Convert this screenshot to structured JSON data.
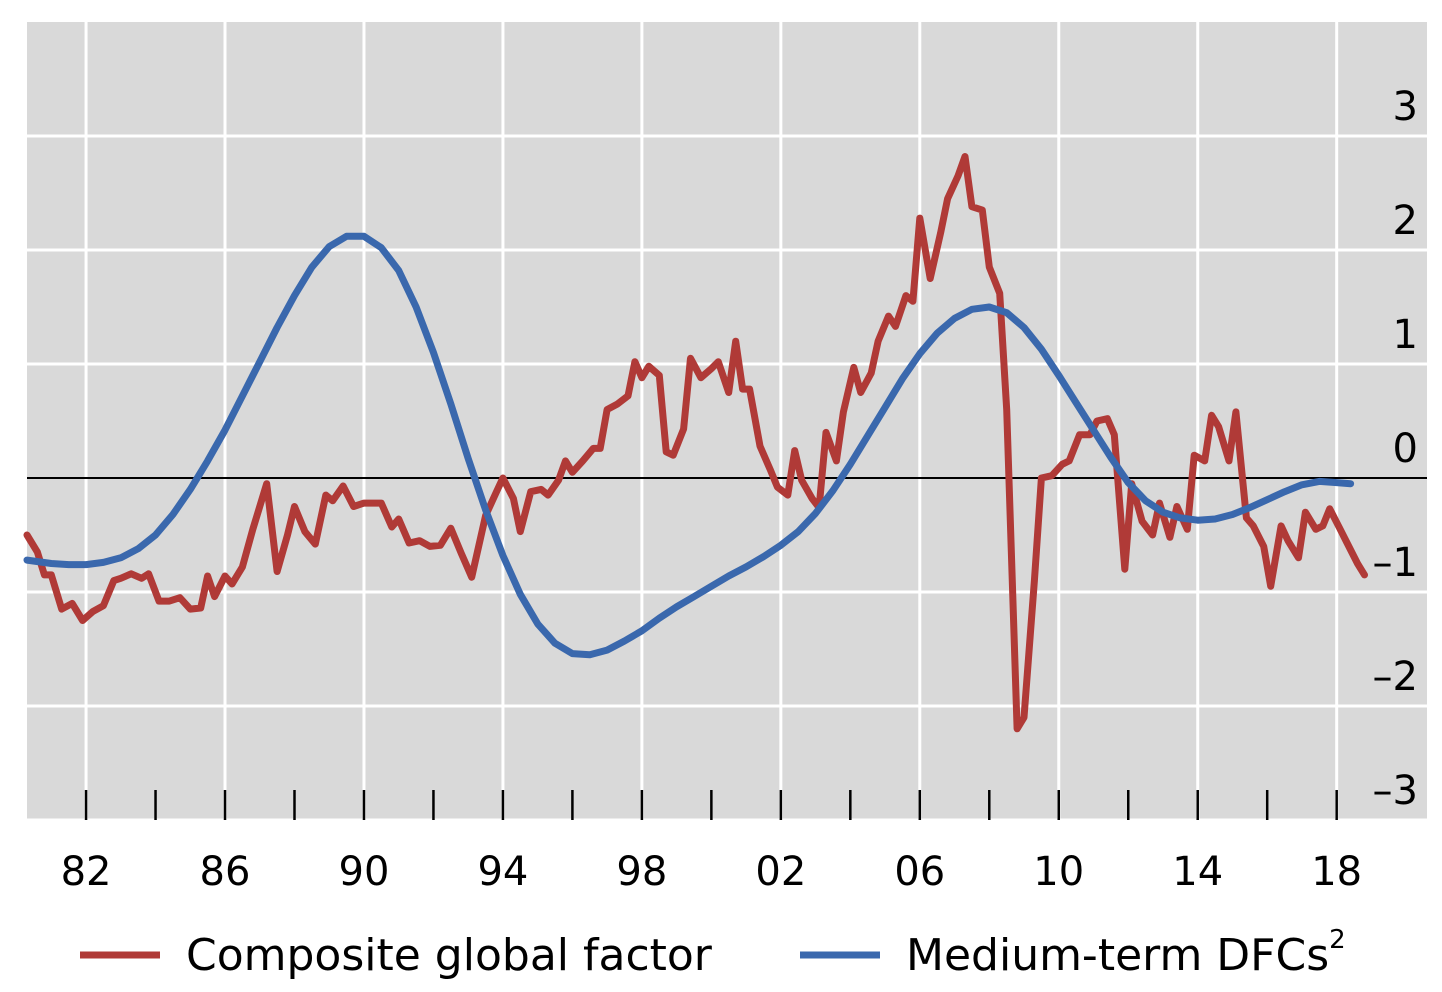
{
  "chart_data": {
    "type": "line",
    "x_tick_labels": [
      {
        "x": 1982,
        "label": "82"
      },
      {
        "x": 1986,
        "label": "86"
      },
      {
        "x": 1990,
        "label": "90"
      },
      {
        "x": 1994,
        "label": "94"
      },
      {
        "x": 1998,
        "label": "98"
      },
      {
        "x": 2002,
        "label": "02"
      },
      {
        "x": 2006,
        "label": "06"
      },
      {
        "x": 2010,
        "label": "10"
      },
      {
        "x": 2014,
        "label": "14"
      },
      {
        "x": 2018,
        "label": "18"
      }
    ],
    "x_minor_ticks": [
      1982,
      1984,
      1986,
      1988,
      1990,
      1992,
      1994,
      1996,
      1998,
      2000,
      2002,
      2004,
      2006,
      2008,
      2010,
      2012,
      2014,
      2016,
      2018
    ],
    "xlim": [
      1980.3,
      2020.6
    ],
    "ylim": [
      -3.0,
      4.0
    ],
    "y_ticks": [
      {
        "value": 3,
        "label": "3"
      },
      {
        "value": 2,
        "label": "2"
      },
      {
        "value": 1,
        "label": "1"
      },
      {
        "value": 0,
        "label": "0"
      },
      {
        "value": -1,
        "label": "–1"
      },
      {
        "value": -2,
        "label": "–2"
      },
      {
        "value": -3,
        "label": "–3"
      }
    ],
    "y_axis_position": "right",
    "grid": true,
    "zero_line": true,
    "legend_position": "bottom",
    "series": [
      {
        "name": "Composite global factor",
        "color": "#b03a37",
        "points": [
          [
            1980.3,
            -0.5
          ],
          [
            1980.6,
            -0.65
          ],
          [
            1980.8,
            -0.85
          ],
          [
            1981.0,
            -0.85
          ],
          [
            1981.3,
            -1.15
          ],
          [
            1981.6,
            -1.1
          ],
          [
            1981.9,
            -1.25
          ],
          [
            1982.2,
            -1.17
          ],
          [
            1982.5,
            -1.12
          ],
          [
            1982.8,
            -0.9
          ],
          [
            1983.0,
            -0.88
          ],
          [
            1983.3,
            -0.84
          ],
          [
            1983.6,
            -0.88
          ],
          [
            1983.8,
            -0.84
          ],
          [
            1984.1,
            -1.08
          ],
          [
            1984.4,
            -1.08
          ],
          [
            1984.7,
            -1.05
          ],
          [
            1985.0,
            -1.15
          ],
          [
            1985.3,
            -1.14
          ],
          [
            1985.5,
            -0.86
          ],
          [
            1985.7,
            -1.04
          ],
          [
            1986.0,
            -0.86
          ],
          [
            1986.2,
            -0.93
          ],
          [
            1986.5,
            -0.78
          ],
          [
            1986.8,
            -0.45
          ],
          [
            1987.2,
            -0.05
          ],
          [
            1987.5,
            -0.82
          ],
          [
            1987.8,
            -0.5
          ],
          [
            1988.0,
            -0.25
          ],
          [
            1988.3,
            -0.47
          ],
          [
            1988.6,
            -0.58
          ],
          [
            1988.9,
            -0.15
          ],
          [
            1989.1,
            -0.2
          ],
          [
            1989.4,
            -0.07
          ],
          [
            1989.7,
            -0.25
          ],
          [
            1990.0,
            -0.22
          ],
          [
            1990.5,
            -0.22
          ],
          [
            1990.8,
            -0.43
          ],
          [
            1991.0,
            -0.36
          ],
          [
            1991.3,
            -0.57
          ],
          [
            1991.6,
            -0.55
          ],
          [
            1991.9,
            -0.6
          ],
          [
            1992.2,
            -0.59
          ],
          [
            1992.5,
            -0.44
          ],
          [
            1992.8,
            -0.66
          ],
          [
            1993.1,
            -0.87
          ],
          [
            1993.5,
            -0.33
          ],
          [
            1993.8,
            -0.13
          ],
          [
            1994.0,
            0.0
          ],
          [
            1994.3,
            -0.18
          ],
          [
            1994.5,
            -0.47
          ],
          [
            1994.8,
            -0.12
          ],
          [
            1995.1,
            -0.1
          ],
          [
            1995.3,
            -0.15
          ],
          [
            1995.6,
            -0.02
          ],
          [
            1995.8,
            0.15
          ],
          [
            1996.0,
            0.05
          ],
          [
            1996.3,
            0.15
          ],
          [
            1996.6,
            0.26
          ],
          [
            1996.8,
            0.26
          ],
          [
            1997.0,
            0.6
          ],
          [
            1997.3,
            0.65
          ],
          [
            1997.6,
            0.72
          ],
          [
            1997.8,
            1.02
          ],
          [
            1998.0,
            0.88
          ],
          [
            1998.2,
            0.98
          ],
          [
            1998.5,
            0.9
          ],
          [
            1998.7,
            0.23
          ],
          [
            1998.9,
            0.2
          ],
          [
            1999.2,
            0.43
          ],
          [
            1999.4,
            1.05
          ],
          [
            1999.7,
            0.88
          ],
          [
            2000.0,
            0.96
          ],
          [
            2000.2,
            1.02
          ],
          [
            2000.5,
            0.75
          ],
          [
            2000.7,
            1.2
          ],
          [
            2000.9,
            0.78
          ],
          [
            2001.1,
            0.78
          ],
          [
            2001.4,
            0.28
          ],
          [
            2001.7,
            0.07
          ],
          [
            2001.9,
            -0.08
          ],
          [
            2002.2,
            -0.15
          ],
          [
            2002.4,
            0.24
          ],
          [
            2002.6,
            -0.02
          ],
          [
            2002.9,
            -0.18
          ],
          [
            2003.1,
            -0.26
          ],
          [
            2003.3,
            0.4
          ],
          [
            2003.6,
            0.15
          ],
          [
            2003.8,
            0.58
          ],
          [
            2004.1,
            0.97
          ],
          [
            2004.3,
            0.75
          ],
          [
            2004.6,
            0.92
          ],
          [
            2004.8,
            1.2
          ],
          [
            2005.1,
            1.42
          ],
          [
            2005.3,
            1.33
          ],
          [
            2005.6,
            1.6
          ],
          [
            2005.8,
            1.55
          ],
          [
            2006.0,
            2.28
          ],
          [
            2006.3,
            1.75
          ],
          [
            2006.6,
            2.15
          ],
          [
            2006.8,
            2.45
          ],
          [
            2007.1,
            2.65
          ],
          [
            2007.3,
            2.82
          ],
          [
            2007.5,
            2.38
          ],
          [
            2007.8,
            2.35
          ],
          [
            2008.0,
            1.85
          ],
          [
            2008.3,
            1.62
          ],
          [
            2008.5,
            0.6
          ],
          [
            2008.8,
            -2.2
          ],
          [
            2009.0,
            -2.1
          ],
          [
            2009.3,
            -0.9
          ],
          [
            2009.5,
            0.0
          ],
          [
            2009.8,
            0.02
          ],
          [
            2010.1,
            0.12
          ],
          [
            2010.3,
            0.15
          ],
          [
            2010.6,
            0.38
          ],
          [
            2010.9,
            0.38
          ],
          [
            2011.1,
            0.5
          ],
          [
            2011.4,
            0.52
          ],
          [
            2011.6,
            0.38
          ],
          [
            2011.9,
            -0.8
          ],
          [
            2012.1,
            -0.05
          ],
          [
            2012.4,
            -0.38
          ],
          [
            2012.7,
            -0.5
          ],
          [
            2012.9,
            -0.22
          ],
          [
            2013.2,
            -0.52
          ],
          [
            2013.4,
            -0.25
          ],
          [
            2013.7,
            -0.45
          ],
          [
            2013.9,
            0.2
          ],
          [
            2014.2,
            0.15
          ],
          [
            2014.4,
            0.55
          ],
          [
            2014.6,
            0.45
          ],
          [
            2014.9,
            0.15
          ],
          [
            2015.1,
            0.58
          ],
          [
            2015.4,
            -0.35
          ],
          [
            2015.6,
            -0.42
          ],
          [
            2015.9,
            -0.6
          ],
          [
            2016.1,
            -0.95
          ],
          [
            2016.4,
            -0.42
          ],
          [
            2016.6,
            -0.55
          ],
          [
            2016.9,
            -0.7
          ],
          [
            2017.1,
            -0.3
          ],
          [
            2017.4,
            -0.45
          ],
          [
            2017.6,
            -0.42
          ],
          [
            2017.8,
            -0.27
          ],
          [
            2018.1,
            -0.45
          ],
          [
            2018.3,
            -0.57
          ],
          [
            2018.6,
            -0.75
          ],
          [
            2018.8,
            -0.85
          ]
        ]
      },
      {
        "name": "Medium-term DFCs",
        "name_superscript": "2",
        "color": "#3a68ad",
        "points": [
          [
            1980.3,
            -0.72
          ],
          [
            1981.0,
            -0.75
          ],
          [
            1981.5,
            -0.76
          ],
          [
            1982.0,
            -0.76
          ],
          [
            1982.5,
            -0.74
          ],
          [
            1983.0,
            -0.7
          ],
          [
            1983.5,
            -0.62
          ],
          [
            1984.0,
            -0.5
          ],
          [
            1984.5,
            -0.32
          ],
          [
            1985.0,
            -0.1
          ],
          [
            1985.5,
            0.15
          ],
          [
            1986.0,
            0.42
          ],
          [
            1986.5,
            0.72
          ],
          [
            1987.0,
            1.02
          ],
          [
            1987.5,
            1.32
          ],
          [
            1988.0,
            1.6
          ],
          [
            1988.5,
            1.85
          ],
          [
            1989.0,
            2.03
          ],
          [
            1989.5,
            2.12
          ],
          [
            1990.0,
            2.12
          ],
          [
            1990.5,
            2.02
          ],
          [
            1991.0,
            1.82
          ],
          [
            1991.5,
            1.5
          ],
          [
            1992.0,
            1.1
          ],
          [
            1992.5,
            0.65
          ],
          [
            1993.0,
            0.17
          ],
          [
            1993.5,
            -0.28
          ],
          [
            1994.0,
            -0.68
          ],
          [
            1994.5,
            -1.02
          ],
          [
            1995.0,
            -1.28
          ],
          [
            1995.5,
            -1.45
          ],
          [
            1996.0,
            -1.54
          ],
          [
            1996.5,
            -1.55
          ],
          [
            1997.0,
            -1.51
          ],
          [
            1997.5,
            -1.43
          ],
          [
            1998.0,
            -1.34
          ],
          [
            1998.5,
            -1.23
          ],
          [
            1999.0,
            -1.13
          ],
          [
            1999.5,
            -1.04
          ],
          [
            2000.0,
            -0.95
          ],
          [
            2000.5,
            -0.86
          ],
          [
            2001.0,
            -0.78
          ],
          [
            2001.5,
            -0.69
          ],
          [
            2002.0,
            -0.59
          ],
          [
            2002.5,
            -0.47
          ],
          [
            2003.0,
            -0.31
          ],
          [
            2003.5,
            -0.11
          ],
          [
            2004.0,
            0.12
          ],
          [
            2004.5,
            0.37
          ],
          [
            2005.0,
            0.62
          ],
          [
            2005.5,
            0.87
          ],
          [
            2006.0,
            1.09
          ],
          [
            2006.5,
            1.27
          ],
          [
            2007.0,
            1.4
          ],
          [
            2007.5,
            1.48
          ],
          [
            2008.0,
            1.5
          ],
          [
            2008.5,
            1.45
          ],
          [
            2009.0,
            1.32
          ],
          [
            2009.5,
            1.13
          ],
          [
            2010.0,
            0.9
          ],
          [
            2010.5,
            0.66
          ],
          [
            2011.0,
            0.42
          ],
          [
            2011.5,
            0.18
          ],
          [
            2012.0,
            -0.04
          ],
          [
            2012.5,
            -0.2
          ],
          [
            2013.0,
            -0.3
          ],
          [
            2013.5,
            -0.35
          ],
          [
            2014.0,
            -0.37
          ],
          [
            2014.5,
            -0.36
          ],
          [
            2015.0,
            -0.32
          ],
          [
            2015.5,
            -0.26
          ],
          [
            2016.0,
            -0.19
          ],
          [
            2016.5,
            -0.12
          ],
          [
            2017.0,
            -0.06
          ],
          [
            2017.5,
            -0.03
          ],
          [
            2018.0,
            -0.04
          ],
          [
            2018.4,
            -0.05
          ]
        ]
      }
    ]
  }
}
